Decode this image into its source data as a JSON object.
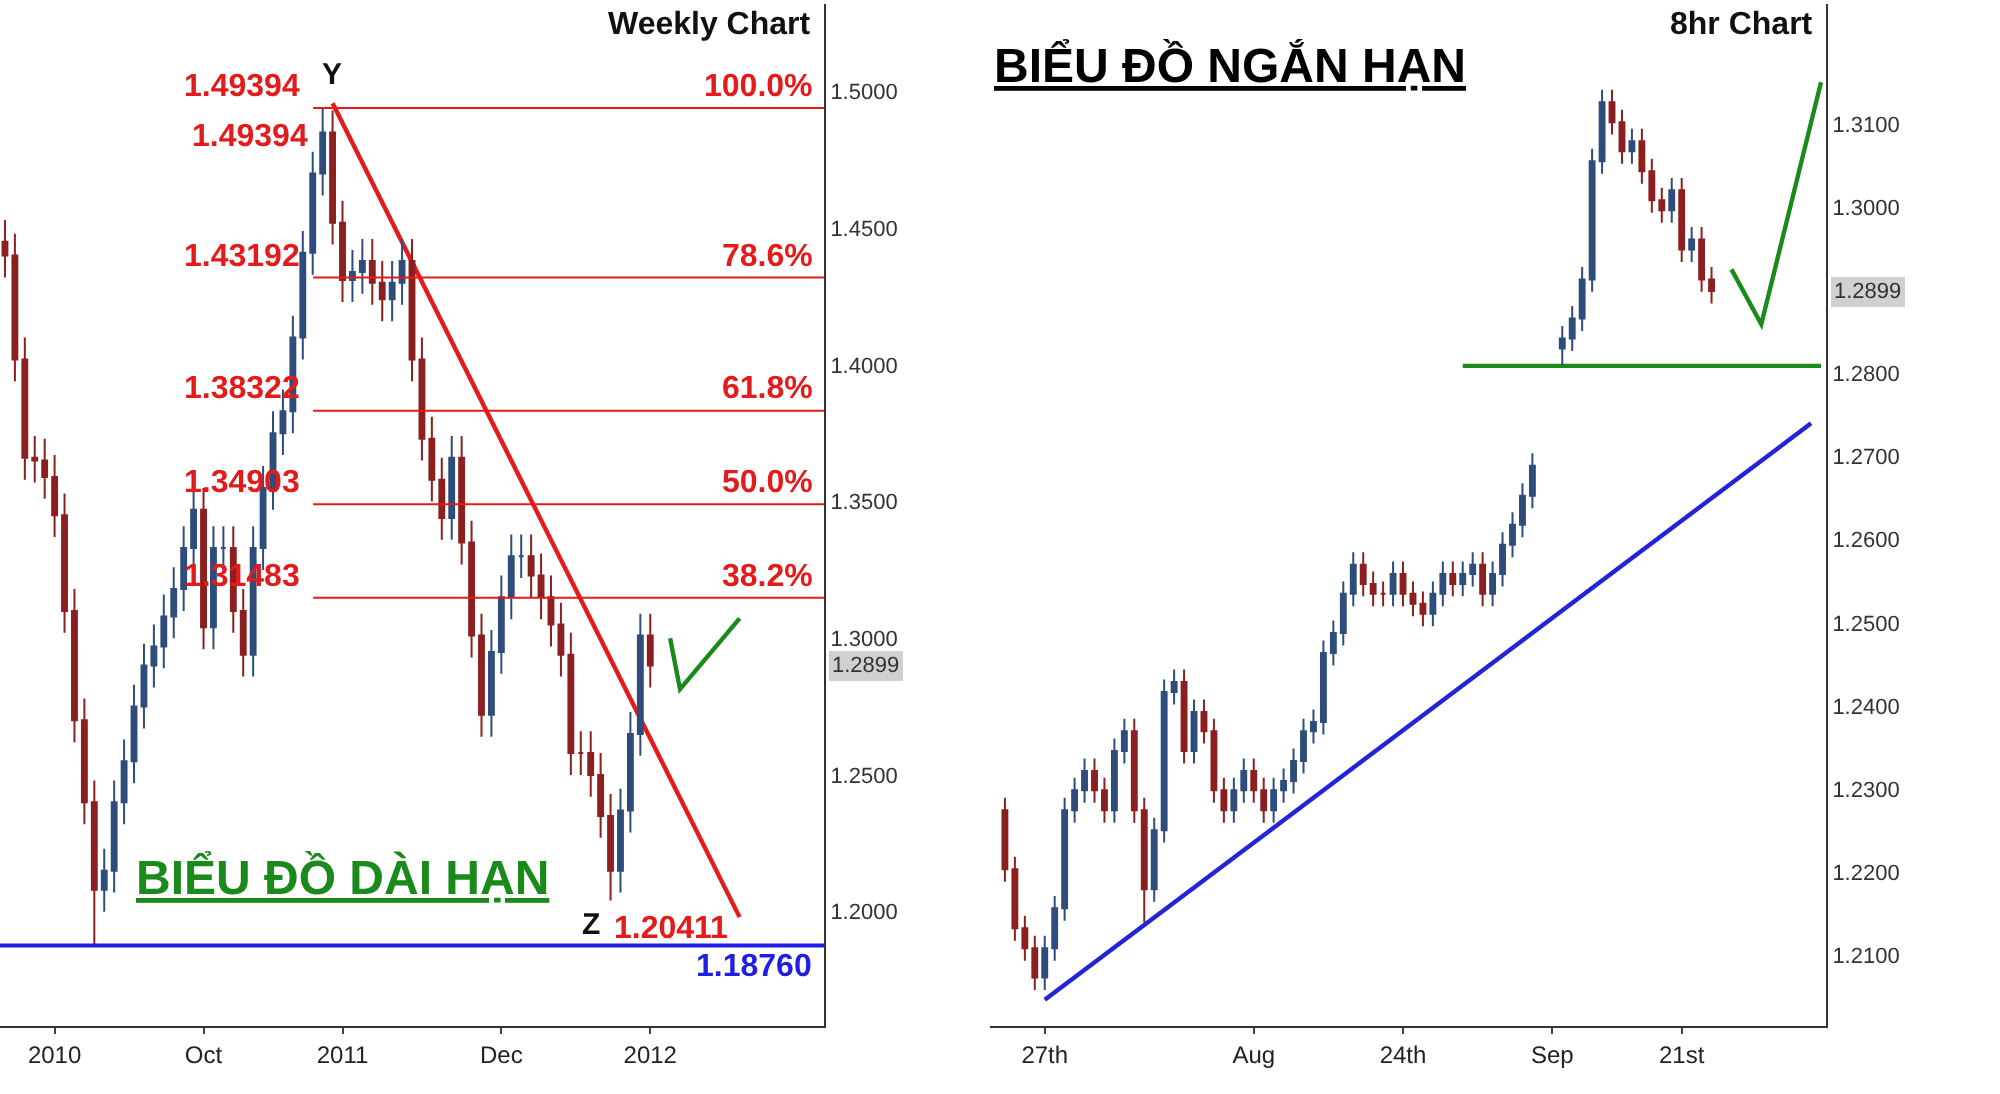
{
  "chart_data": [
    {
      "type": "candlestick",
      "title": "Weekly Chart",
      "subtitle": "BIỂU ĐỒ DÀI HẠN",
      "categories": [
        null,
        null,
        null,
        null,
        null,
        "2010",
        null,
        null,
        null,
        null,
        null,
        null,
        null,
        null,
        null,
        null,
        null,
        null,
        null,
        null,
        "Oct",
        null,
        null,
        null,
        null,
        null,
        null,
        null,
        null,
        null,
        null,
        null,
        null,
        null,
        "2011",
        null,
        null,
        null,
        null,
        null,
        null,
        null,
        null,
        null,
        null,
        null,
        null,
        null,
        null,
        null,
        "Dec",
        null,
        null,
        null,
        null,
        null,
        null,
        null,
        null,
        null,
        null,
        null,
        null,
        null,
        null,
        "2012",
        null,
        null,
        null,
        null,
        null,
        null,
        null,
        null,
        null,
        null,
        null,
        null,
        null,
        null,
        null,
        null,
        null
      ],
      "ohlc": [
        [
          1.445,
          1.453,
          1.432,
          1.44
        ],
        [
          1.44,
          1.448,
          1.394,
          1.402
        ],
        [
          1.402,
          1.41,
          1.358,
          1.366
        ],
        [
          1.366,
          1.374,
          1.357,
          1.365
        ],
        [
          1.365,
          1.373,
          1.351,
          1.359
        ],
        [
          1.359,
          1.367,
          1.337,
          1.345
        ],
        [
          1.345,
          1.353,
          1.302,
          1.31
        ],
        [
          1.31,
          1.318,
          1.262,
          1.27
        ],
        [
          1.27,
          1.278,
          1.232,
          1.24
        ],
        [
          1.24,
          1.248,
          1.1876,
          1.208
        ],
        [
          1.208,
          1.223,
          1.2,
          1.215
        ],
        [
          1.215,
          1.248,
          1.207,
          1.24
        ],
        [
          1.24,
          1.263,
          1.232,
          1.255
        ],
        [
          1.255,
          1.283,
          1.247,
          1.275
        ],
        [
          1.275,
          1.298,
          1.267,
          1.29
        ],
        [
          1.29,
          1.305,
          1.282,
          1.297
        ],
        [
          1.297,
          1.316,
          1.289,
          1.308
        ],
        [
          1.308,
          1.326,
          1.3,
          1.318
        ],
        [
          1.318,
          1.341,
          1.31,
          1.333
        ],
        [
          1.333,
          1.355,
          1.325,
          1.347
        ],
        [
          1.347,
          1.355,
          1.296,
          1.304
        ],
        [
          1.304,
          1.341,
          1.296,
          1.333
        ],
        [
          1.333,
          1.341,
          1.325,
          1.333
        ],
        [
          1.333,
          1.341,
          1.302,
          1.31
        ],
        [
          1.31,
          1.318,
          1.286,
          1.294
        ],
        [
          1.294,
          1.341,
          1.286,
          1.333
        ],
        [
          1.333,
          1.363,
          1.325,
          1.355
        ],
        [
          1.355,
          1.383,
          1.347,
          1.375
        ],
        [
          1.375,
          1.391,
          1.367,
          1.383
        ],
        [
          1.383,
          1.418,
          1.375,
          1.41
        ],
        [
          1.41,
          1.449,
          1.402,
          1.441
        ],
        [
          1.441,
          1.478,
          1.433,
          1.47
        ],
        [
          1.47,
          1.49394,
          1.462,
          1.485
        ],
        [
          1.485,
          1.493,
          1.444,
          1.452
        ],
        [
          1.452,
          1.46,
          1.423,
          1.431
        ],
        [
          1.431,
          1.442,
          1.423,
          1.434
        ],
        [
          1.434,
          1.446,
          1.426,
          1.438
        ],
        [
          1.438,
          1.446,
          1.422,
          1.43
        ],
        [
          1.43,
          1.438,
          1.416,
          1.424
        ],
        [
          1.424,
          1.438,
          1.416,
          1.43
        ],
        [
          1.43,
          1.446,
          1.422,
          1.438
        ],
        [
          1.438,
          1.446,
          1.394,
          1.402
        ],
        [
          1.402,
          1.41,
          1.365,
          1.373
        ],
        [
          1.373,
          1.381,
          1.35,
          1.358
        ],
        [
          1.358,
          1.366,
          1.336,
          1.344
        ],
        [
          1.344,
          1.374,
          1.336,
          1.366
        ],
        [
          1.366,
          1.374,
          1.327,
          1.335
        ],
        [
          1.335,
          1.343,
          1.293,
          1.301
        ],
        [
          1.301,
          1.309,
          1.264,
          1.272
        ],
        [
          1.272,
          1.303,
          1.264,
          1.295
        ],
        [
          1.295,
          1.323,
          1.287,
          1.315
        ],
        [
          1.315,
          1.338,
          1.307,
          1.33
        ],
        [
          1.33,
          1.338,
          1.322,
          1.33
        ],
        [
          1.33,
          1.338,
          1.315,
          1.323
        ],
        [
          1.323,
          1.331,
          1.307,
          1.315
        ],
        [
          1.315,
          1.323,
          1.297,
          1.305
        ],
        [
          1.305,
          1.313,
          1.286,
          1.294
        ],
        [
          1.294,
          1.302,
          1.25,
          1.258
        ],
        [
          1.258,
          1.266,
          1.25,
          1.258
        ],
        [
          1.258,
          1.266,
          1.242,
          1.25
        ],
        [
          1.25,
          1.258,
          1.227,
          1.235
        ],
        [
          1.235,
          1.243,
          1.20411,
          1.215
        ],
        [
          1.215,
          1.245,
          1.207,
          1.237
        ],
        [
          1.237,
          1.273,
          1.229,
          1.265
        ],
        [
          1.265,
          1.309,
          1.257,
          1.301
        ],
        [
          1.301,
          1.309,
          1.282,
          1.29
        ],
        null,
        null,
        null,
        null,
        null,
        null,
        null,
        null,
        null,
        null,
        null,
        null,
        null,
        null,
        null,
        null,
        null
      ],
      "series": [
        {
          "type": "line",
          "color": "#e31b1b",
          "values": [
            null,
            null,
            null,
            null,
            null,
            null,
            null,
            null,
            null,
            null,
            null,
            null,
            null,
            null,
            null,
            null,
            null,
            null,
            null,
            null,
            null,
            null,
            null,
            null,
            null,
            null,
            null,
            null,
            null,
            null,
            null,
            null,
            null,
            1.4957,
            null,
            null,
            null,
            null,
            null,
            null,
            null,
            null,
            null,
            null,
            null,
            null,
            null,
            null,
            null,
            null,
            null,
            null,
            null,
            null,
            null,
            null,
            null,
            null,
            null,
            null,
            null,
            null,
            null,
            null,
            null,
            null,
            null,
            null,
            null,
            null,
            null,
            null,
            null,
            null,
            1.198,
            null,
            null,
            null,
            null,
            null,
            null,
            null,
            null
          ]
        },
        {
          "type": "line",
          "color": "#1a8a1a",
          "values": [
            null,
            null,
            null,
            null,
            null,
            null,
            null,
            null,
            null,
            null,
            null,
            null,
            null,
            null,
            null,
            null,
            null,
            null,
            null,
            null,
            null,
            null,
            null,
            null,
            null,
            null,
            null,
            null,
            null,
            null,
            null,
            null,
            null,
            null,
            null,
            null,
            null,
            null,
            null,
            null,
            null,
            null,
            null,
            null,
            null,
            null,
            null,
            null,
            null,
            null,
            null,
            null,
            null,
            null,
            null,
            null,
            null,
            null,
            null,
            null,
            null,
            null,
            null,
            null,
            null,
            null,
            null,
            1.3,
            1.2814,
            null,
            null,
            null,
            null,
            null,
            1.3073,
            null,
            null,
            null,
            null,
            null,
            null,
            null,
            null
          ]
        }
      ],
      "ref_lines": [
        {
          "axis": "y",
          "value": 1.49394,
          "label": "1.49394",
          "color": "#e31b1b"
        },
        {
          "axis": "y",
          "value": 1.43192,
          "label": "1.43192",
          "color": "#e31b1b"
        },
        {
          "axis": "y",
          "value": 1.38322,
          "label": "1.38322",
          "color": "#e31b1b"
        },
        {
          "axis": "y",
          "value": 1.34903,
          "label": "1.34903",
          "color": "#e31b1b"
        },
        {
          "axis": "y",
          "value": 1.31483,
          "label": "1.31483",
          "color": "#e31b1b"
        },
        {
          "axis": "y",
          "value": 1.1876,
          "label": "1.18760",
          "color": "#1e1ee6"
        }
      ],
      "annotations": [
        {
          "text": "100.0%",
          "y": 1.49394
        },
        {
          "text": "78.6%",
          "y": 1.43192
        },
        {
          "text": "61.8%",
          "y": 1.38322
        },
        {
          "text": "50.0%",
          "y": 1.34903
        },
        {
          "text": "38.2%",
          "y": 1.31483
        },
        "Y",
        "1.49394",
        "Z",
        "1.20411",
        "1.2899"
      ],
      "ylim": [
        1.158,
        1.532
      ],
      "yticks": [
        {
          "value": 1.2,
          "label": "1.2000"
        },
        {
          "value": 1.25,
          "label": "1.2500"
        },
        {
          "value": 1.3,
          "label": "1.3000"
        },
        {
          "value": 1.35,
          "label": "1.3500"
        },
        {
          "value": 1.4,
          "label": "1.4000"
        },
        {
          "value": 1.45,
          "label": "1.4500"
        },
        {
          "value": 1.5,
          "label": "1.5000"
        }
      ]
    },
    {
      "type": "candlestick",
      "title": "8hr Chart",
      "subtitle": "BIỂU ĐỒ NGẮN HẠN",
      "categories": [
        null,
        null,
        null,
        null,
        null,
        "27th",
        null,
        null,
        null,
        null,
        null,
        null,
        null,
        null,
        null,
        null,
        null,
        null,
        null,
        null,
        null,
        null,
        null,
        null,
        null,
        null,
        "Aug",
        null,
        null,
        null,
        null,
        null,
        null,
        null,
        null,
        null,
        null,
        null,
        null,
        null,
        null,
        "24th",
        null,
        null,
        null,
        null,
        null,
        null,
        null,
        null,
        null,
        null,
        null,
        null,
        null,
        null,
        "Sep",
        null,
        null,
        null,
        null,
        null,
        null,
        null,
        null,
        null,
        null,
        null,
        null,
        "21st",
        null,
        null,
        null,
        null,
        null,
        null,
        null,
        null,
        null,
        null,
        null,
        null,
        null,
        null
      ],
      "ohlc": [
        null,
        [
          1.2275,
          1.229,
          1.2189,
          1.2204
        ],
        [
          1.2204,
          1.2219,
          1.2118,
          1.2133
        ],
        [
          1.2133,
          1.2148,
          1.2094,
          1.2109
        ],
        [
          1.2109,
          1.2124,
          1.2059,
          1.2074
        ],
        [
          1.2074,
          1.2124,
          1.2059,
          1.2109
        ],
        [
          1.2109,
          1.2172,
          1.2094,
          1.2157
        ],
        [
          1.2157,
          1.229,
          1.2142,
          1.2275
        ],
        [
          1.2275,
          1.2314,
          1.226,
          1.2299
        ],
        [
          1.2299,
          1.2337,
          1.2284,
          1.2322
        ],
        [
          1.2322,
          1.2337,
          1.2284,
          1.2299
        ],
        [
          1.2299,
          1.2314,
          1.226,
          1.2275
        ],
        [
          1.2275,
          1.2361,
          1.226,
          1.2346
        ],
        [
          1.2346,
          1.2385,
          1.2331,
          1.237
        ],
        [
          1.237,
          1.2385,
          1.226,
          1.2275
        ],
        [
          1.2275,
          1.229,
          1.214,
          1.218
        ],
        [
          1.218,
          1.2266,
          1.2165,
          1.2251
        ],
        [
          1.2251,
          1.2432,
          1.2236,
          1.2417
        ],
        [
          1.2417,
          1.2444,
          1.2402,
          1.2429
        ],
        [
          1.2429,
          1.2444,
          1.2331,
          1.2346
        ],
        [
          1.2346,
          1.2408,
          1.2331,
          1.2393
        ],
        [
          1.2393,
          1.2408,
          1.2355,
          1.237
        ],
        [
          1.237,
          1.2385,
          1.2284,
          1.2299
        ],
        [
          1.2299,
          1.2314,
          1.226,
          1.2275
        ],
        [
          1.2275,
          1.2314,
          1.226,
          1.2299
        ],
        [
          1.2299,
          1.2337,
          1.2284,
          1.2322
        ],
        [
          1.2322,
          1.2337,
          1.2284,
          1.2299
        ],
        [
          1.2299,
          1.2314,
          1.226,
          1.2275
        ],
        [
          1.2275,
          1.2314,
          1.226,
          1.2299
        ],
        [
          1.2299,
          1.2325,
          1.2284,
          1.231
        ],
        [
          1.231,
          1.2349,
          1.2295,
          1.2334
        ],
        [
          1.2334,
          1.2385,
          1.2319,
          1.237
        ],
        [
          1.237,
          1.2396,
          1.2355,
          1.2381
        ],
        [
          1.2381,
          1.2479,
          1.2366,
          1.2464
        ],
        [
          1.2464,
          1.2503,
          1.2449,
          1.2488
        ],
        [
          1.2488,
          1.255,
          1.2473,
          1.2535
        ],
        [
          1.2535,
          1.2585,
          1.252,
          1.257
        ],
        [
          1.257,
          1.2585,
          1.2532,
          1.2547
        ],
        [
          1.2547,
          1.2562,
          1.252,
          1.2535
        ],
        [
          1.2535,
          1.255,
          1.252,
          1.2535
        ],
        [
          1.2535,
          1.2574,
          1.252,
          1.2559
        ],
        [
          1.2559,
          1.2574,
          1.252,
          1.2535
        ],
        [
          1.2535,
          1.255,
          1.2508,
          1.2523
        ],
        [
          1.2523,
          1.2538,
          1.2496,
          1.2511
        ],
        [
          1.2511,
          1.255,
          1.2496,
          1.2535
        ],
        [
          1.2535,
          1.2574,
          1.252,
          1.2559
        ],
        [
          1.2559,
          1.2574,
          1.2532,
          1.2547
        ],
        [
          1.2547,
          1.2574,
          1.2532,
          1.2559
        ],
        [
          1.2559,
          1.2585,
          1.2544,
          1.257
        ],
        [
          1.257,
          1.2585,
          1.252,
          1.2535
        ],
        [
          1.2535,
          1.2574,
          1.252,
          1.2559
        ],
        [
          1.2559,
          1.2609,
          1.2544,
          1.2594
        ],
        [
          1.2594,
          1.2633,
          1.2579,
          1.2618
        ],
        [
          1.2618,
          1.2668,
          1.2603,
          1.2653
        ],
        [
          1.2653,
          1.2704,
          1.2638,
          1.2689
        ],
        null,
        null,
        [
          1.283,
          1.2857,
          1.281,
          1.2842
        ],
        [
          1.2842,
          1.2881,
          1.2827,
          1.2866
        ],
        [
          1.2866,
          1.2928,
          1.2851,
          1.2913
        ],
        [
          1.2913,
          1.307,
          1.2898,
          1.3055
        ],
        [
          1.3055,
          1.3141,
          1.304,
          1.3126
        ],
        [
          1.3126,
          1.3141,
          1.3087,
          1.3102
        ],
        [
          1.3102,
          1.3117,
          1.3052,
          1.3067
        ],
        [
          1.3067,
          1.3094,
          1.3052,
          1.3079
        ],
        [
          1.3079,
          1.3094,
          1.3028,
          1.3043
        ],
        [
          1.3043,
          1.3058,
          1.2993,
          1.3008
        ],
        [
          1.3008,
          1.3023,
          1.2981,
          1.2996
        ],
        [
          1.2996,
          1.3035,
          1.2981,
          1.302
        ],
        [
          1.302,
          1.3035,
          1.2934,
          1.2949
        ],
        [
          1.2949,
          1.2976,
          1.2934,
          1.2961
        ],
        [
          1.2961,
          1.2976,
          1.2898,
          1.2913
        ],
        [
          1.2913,
          1.2928,
          1.2884,
          1.2899
        ],
        null,
        null,
        null,
        null,
        null,
        null,
        null,
        null,
        null,
        null,
        null
      ],
      "series": [
        {
          "type": "line",
          "color": "#2323d8",
          "values": [
            null,
            null,
            null,
            null,
            null,
            1.2047,
            null,
            null,
            null,
            null,
            null,
            null,
            null,
            null,
            null,
            null,
            null,
            null,
            null,
            null,
            null,
            null,
            null,
            null,
            null,
            null,
            null,
            null,
            null,
            null,
            null,
            null,
            null,
            null,
            null,
            null,
            null,
            null,
            null,
            null,
            null,
            null,
            null,
            null,
            null,
            null,
            null,
            null,
            null,
            null,
            null,
            null,
            null,
            null,
            null,
            null,
            null,
            null,
            null,
            null,
            null,
            null,
            null,
            null,
            null,
            null,
            null,
            null,
            null,
            null,
            null,
            null,
            null,
            null,
            null,
            null,
            null,
            null,
            null,
            null,
            null,
            null,
            1.274,
            null
          ]
        },
        {
          "type": "line",
          "color": "#1a8a1a",
          "values": [
            null,
            null,
            null,
            null,
            null,
            null,
            null,
            null,
            null,
            null,
            null,
            null,
            null,
            null,
            null,
            null,
            null,
            null,
            null,
            null,
            null,
            null,
            null,
            null,
            null,
            null,
            null,
            null,
            null,
            null,
            null,
            null,
            null,
            null,
            null,
            null,
            null,
            null,
            null,
            null,
            null,
            null,
            null,
            null,
            null,
            null,
            null,
            1.2809,
            null,
            null,
            null,
            null,
            null,
            null,
            null,
            null,
            null,
            null,
            null,
            null,
            null,
            null,
            null,
            null,
            null,
            null,
            null,
            null,
            null,
            null,
            null,
            null,
            null,
            null,
            null,
            null,
            null,
            null,
            null,
            null,
            null,
            null,
            null,
            1.2809
          ]
        },
        {
          "type": "line",
          "color": "#1a8a1a",
          "values": [
            null,
            null,
            null,
            null,
            null,
            null,
            null,
            null,
            null,
            null,
            null,
            null,
            null,
            null,
            null,
            null,
            null,
            null,
            null,
            null,
            null,
            null,
            null,
            null,
            null,
            null,
            null,
            null,
            null,
            null,
            null,
            null,
            null,
            null,
            null,
            null,
            null,
            null,
            null,
            null,
            null,
            null,
            null,
            null,
            null,
            null,
            null,
            null,
            null,
            null,
            null,
            null,
            null,
            null,
            null,
            null,
            null,
            null,
            null,
            null,
            null,
            null,
            null,
            null,
            null,
            null,
            null,
            null,
            null,
            null,
            null,
            null,
            null,
            null,
            1.2925,
            null,
            null,
            1.2859,
            null,
            null,
            null,
            null,
            null,
            1.315
          ]
        }
      ],
      "annotations": [
        "1.2899"
      ],
      "ylim": [
        1.2015,
        1.3244
      ],
      "yticks": [
        {
          "value": 1.21,
          "label": "1.2100"
        },
        {
          "value": 1.22,
          "label": "1.2200"
        },
        {
          "value": 1.23,
          "label": "1.2300"
        },
        {
          "value": 1.24,
          "label": "1.2400"
        },
        {
          "value": 1.25,
          "label": "1.2500"
        },
        {
          "value": 1.26,
          "label": "1.2600"
        },
        {
          "value": 1.27,
          "label": "1.2700"
        },
        {
          "value": 1.28,
          "label": "1.2800"
        },
        {
          "value": 1.3,
          "label": "1.3000"
        },
        {
          "value": 1.31,
          "label": "1.3100"
        }
      ]
    }
  ]
}
